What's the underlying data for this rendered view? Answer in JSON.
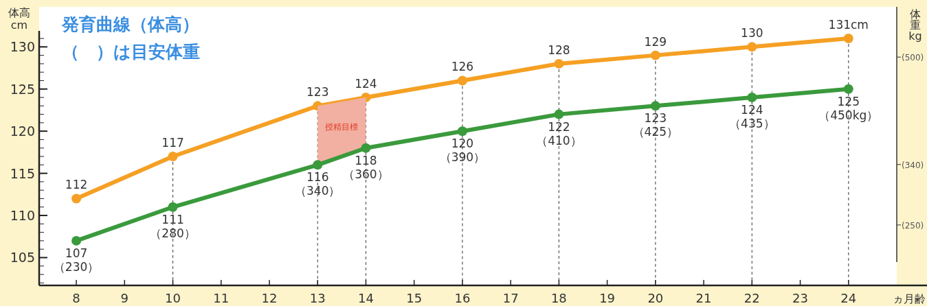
{
  "chart_data": {
    "type": "line",
    "title": "発育曲線（体高）",
    "subtitle": "（　）は目安体重",
    "ylabel": "体高\ncm",
    "y2label": "体重kg",
    "xlabel": "ヵ月齢",
    "xlim": [
      7.23,
      25
    ],
    "xticks": [
      8,
      9,
      10,
      11,
      12,
      13,
      14,
      15,
      16,
      17,
      18,
      19,
      20,
      21,
      22,
      23,
      24
    ],
    "ylim": [
      101.7,
      131.9
    ],
    "yticks": [
      105,
      110,
      115,
      120,
      125,
      130
    ],
    "y2lim": [
      160,
      539
    ],
    "y2ticks": [
      {
        "value": 500,
        "label": "(500)"
      },
      {
        "value": 340,
        "label": "(340)"
      },
      {
        "value": 250,
        "label": "(250)"
      }
    ],
    "marker": "circle",
    "line_style": "solid",
    "series": [
      {
        "color": "#f5a024",
        "x": [
          8,
          10,
          13,
          14,
          16,
          18,
          20,
          22,
          24
        ],
        "values": [
          112,
          117,
          123,
          124,
          126,
          128,
          129,
          130,
          131
        ],
        "value_labels": [
          "112",
          "117",
          "123",
          "124",
          "126",
          "128",
          "129",
          "130",
          "131cm"
        ]
      },
      {
        "color": "#3a9a3c",
        "x": [
          8,
          10,
          13,
          14,
          16,
          18,
          20,
          22,
          24
        ],
        "values": [
          107,
          111,
          116,
          118,
          120,
          122,
          123,
          124,
          125
        ],
        "lower": [
          null,
          null,
          116,
          118,
          null,
          null,
          null,
          null,
          null
        ],
        "upper": [
          null,
          null,
          123,
          124,
          null,
          null,
          null,
          null,
          null
        ],
        "value_labels": [
          "107\n（230）",
          "111\n（280）",
          "116\n（340）",
          "118\n（360）",
          "120\n（390）",
          "122\n（410）",
          "123\n（425）",
          "124\n（435）",
          "125\n（450kg）"
        ]
      }
    ],
    "ref_lines": [
      {
        "axis": "x",
        "value": 10,
        "line_style": "dashed"
      },
      {
        "axis": "x",
        "value": 13,
        "line_style": "dashed"
      },
      {
        "axis": "x",
        "value": 14,
        "line_style": "dashed"
      },
      {
        "axis": "x",
        "value": 16,
        "line_style": "dashed"
      },
      {
        "axis": "x",
        "value": 18,
        "line_style": "dashed"
      },
      {
        "axis": "x",
        "value": 20,
        "line_style": "dashed"
      },
      {
        "axis": "x",
        "value": 22,
        "line_style": "dashed"
      },
      {
        "axis": "x",
        "value": 24,
        "line_style": "dashed"
      }
    ],
    "annotations": [
      "授精目標"
    ]
  }
}
